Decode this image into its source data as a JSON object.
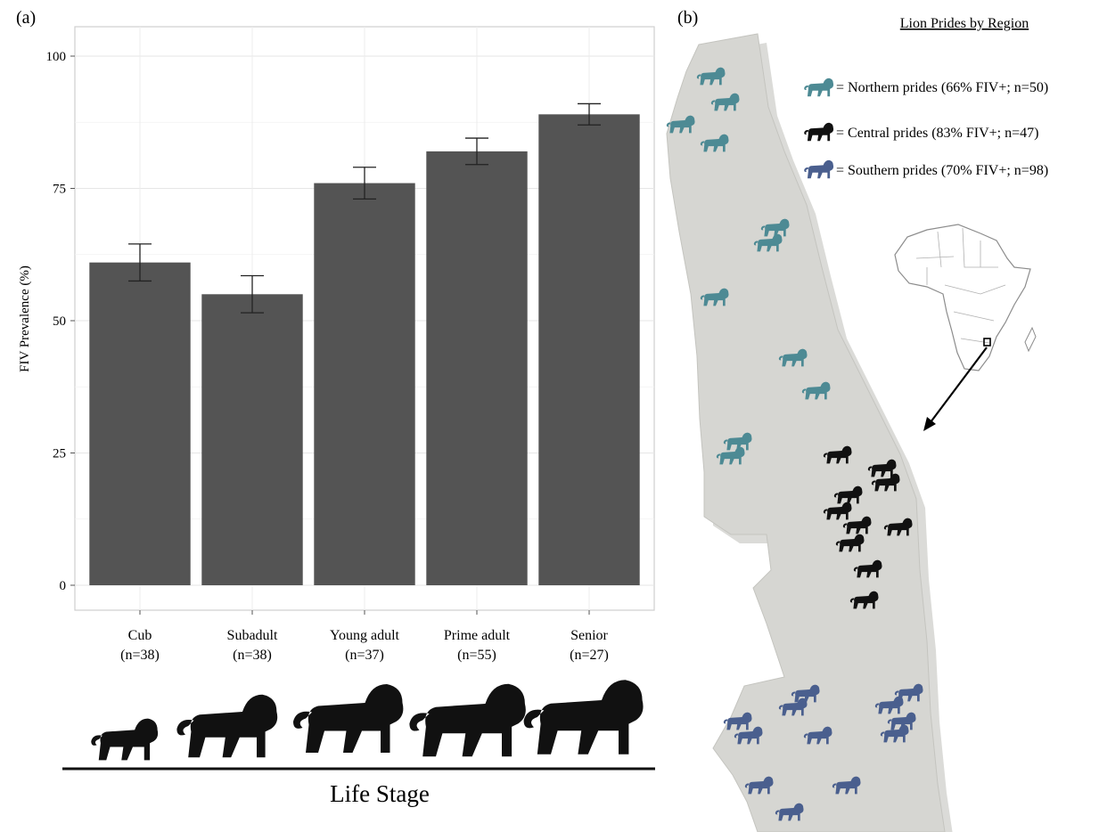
{
  "panel_a": {
    "label": "(a)",
    "xlabel": "Life Stage",
    "chart_data": {
      "type": "bar",
      "ylabel": "FIV Prevalence (%)",
      "xlabel": "Life Stage",
      "ylim": [
        0,
        100
      ],
      "yticks": [
        0,
        25,
        50,
        75,
        100
      ],
      "grid": true,
      "categories": [
        "Cub",
        "Subadult",
        "Young adult",
        "Prime adult",
        "Senior"
      ],
      "sample_sizes": [
        "(n=38)",
        "(n=38)",
        "(n=37)",
        "(n=55)",
        "(n=27)"
      ],
      "values": [
        61,
        55,
        76,
        82,
        89
      ],
      "error_low": [
        57.5,
        51.5,
        73,
        79.5,
        87
      ],
      "error_high": [
        64.5,
        58.5,
        79,
        84.5,
        91
      ],
      "bar_color": "#545454"
    }
  },
  "panel_b": {
    "label": "(b)",
    "map_title": "Lion Prides by Region",
    "legend": [
      {
        "text": "= Northern prides (66% FIV+; n=50)",
        "color": "#4d8a94"
      },
      {
        "text": "= Central prides (83% FIV+; n=47)",
        "color": "#111111"
      },
      {
        "text": "= Southern prides (70% FIV+; n=98)",
        "color": "#4a5f8e"
      }
    ],
    "map_color": "#d6d6d2",
    "inset_icon": "africa-outline-icon"
  }
}
